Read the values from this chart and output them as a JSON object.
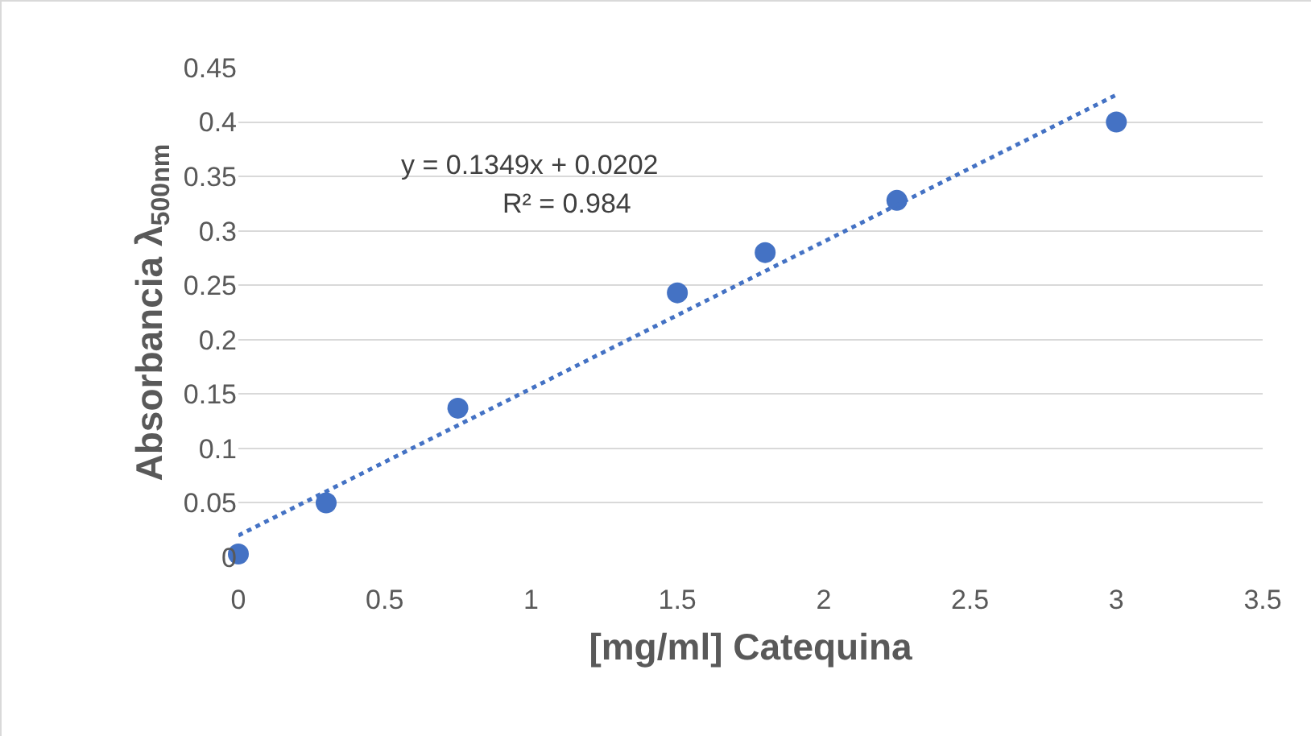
{
  "chart_data": {
    "type": "scatter",
    "xlabel": "[mg/ml] Catequina",
    "ylabel": "Absorbancia λ$_{500nm}$",
    "x": [
      0,
      0.3,
      0.75,
      1.5,
      1.8,
      2.25,
      3
    ],
    "series": [
      {
        "color": "#4472c4",
        "values": [
          0.003,
          0.05,
          0.137,
          0.243,
          0.28,
          0.328,
          0.4
        ],
        "marker": "circle"
      },
      {
        "type": "line",
        "color": "#4472c4",
        "x": [
          0,
          3
        ],
        "values": [
          0.02,
          0.425
        ],
        "line_style": "dotted",
        "marker": "none"
      }
    ],
    "xlim": [
      0,
      3.5
    ],
    "xticks": [
      0,
      0.5,
      1,
      1.5,
      2,
      2.5,
      3,
      3.5
    ],
    "ylim": [
      0,
      0.45
    ],
    "yticks": [
      0,
      0.05,
      0.1,
      0.15,
      0.2,
      0.25,
      0.3,
      0.35,
      0.4,
      0.45
    ],
    "grid": "y",
    "annotations": [
      "y = 0.1349x + 0.0202",
      "R² = 0.984"
    ]
  }
}
